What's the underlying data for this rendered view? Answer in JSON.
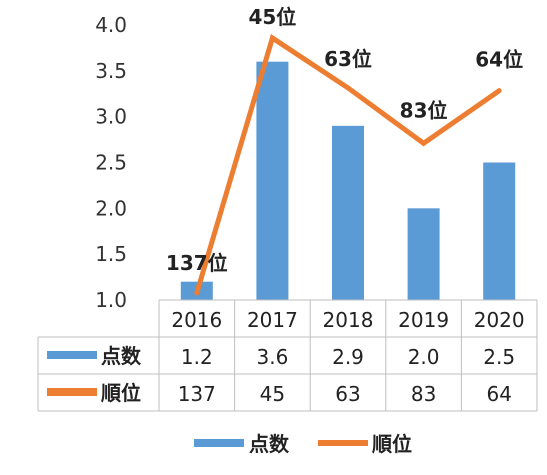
{
  "chart_data": {
    "type": "bar",
    "categories": [
      "2016",
      "2017",
      "2018",
      "2019",
      "2020"
    ],
    "series": [
      {
        "name": "点数",
        "kind": "bar",
        "color": "#5b9bd5",
        "values": [
          1.2,
          3.6,
          2.9,
          2.0,
          2.5
        ]
      },
      {
        "name": "順位",
        "kind": "line",
        "color": "#ed7d31",
        "values": [
          137,
          45,
          63,
          83,
          64
        ]
      }
    ],
    "line_labels": [
      "137位",
      "45位",
      "63位",
      "83位",
      "64位"
    ],
    "table_values": [
      [
        "1.2",
        "3.6",
        "2.9",
        "2.0",
        "2.5"
      ],
      [
        "137",
        "45",
        "63",
        "83",
        "64"
      ]
    ],
    "y_ticks": [
      "1.0",
      "1.5",
      "2.0",
      "2.5",
      "3.0",
      "3.5",
      "4.0"
    ],
    "ylim": [
      1.0,
      4.0
    ],
    "y2_reversed": true,
    "legend_position": "bottom",
    "data_table": true,
    "grid": false
  }
}
